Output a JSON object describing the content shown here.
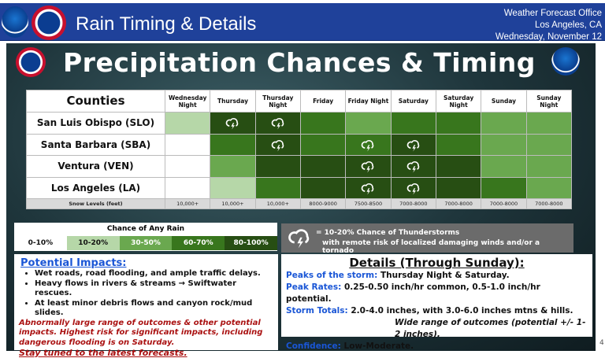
{
  "header": {
    "title": "Rain Timing & Details",
    "office": "Weather Forecast Office",
    "location": "Los Angeles, CA",
    "date": "Wednesday, November 12",
    "noaa_logo": "NOAA",
    "nws_logo": "NATIONAL WEATHER SERVICE"
  },
  "panel_title": "Precipitation Chances & Timing",
  "colors": {
    "1": "#ffffff",
    "2": "#b6d7a8",
    "3": "#6aa84f",
    "4": "#38761d",
    "5": "#274e13"
  },
  "table": {
    "counties_header": "Counties",
    "periods": [
      "Wednesday Night",
      "Thursday",
      "Thursday Night",
      "Friday",
      "Friday Night",
      "Saturday",
      "Saturday Night",
      "Sunday",
      "Sunday Night"
    ],
    "rows": [
      {
        "county": "San Luis Obispo (SLO)",
        "levels": [
          2,
          5,
          5,
          4,
          3,
          4,
          4,
          3,
          3
        ],
        "storms": [
          0,
          1,
          1,
          0,
          0,
          0,
          0,
          0,
          0
        ]
      },
      {
        "county": "Santa Barbara (SBA)",
        "levels": [
          1,
          4,
          5,
          4,
          4,
          5,
          4,
          3,
          3
        ],
        "storms": [
          0,
          0,
          1,
          0,
          1,
          1,
          0,
          0,
          0
        ]
      },
      {
        "county": "Ventura (VEN)",
        "levels": [
          1,
          3,
          5,
          5,
          5,
          5,
          5,
          3,
          3
        ],
        "storms": [
          0,
          0,
          0,
          0,
          1,
          1,
          0,
          0,
          0
        ]
      },
      {
        "county": "Los Angeles (LA)",
        "levels": [
          1,
          2,
          4,
          5,
          5,
          5,
          5,
          4,
          3
        ],
        "storms": [
          0,
          0,
          0,
          0,
          1,
          1,
          0,
          0,
          0
        ]
      }
    ],
    "snow_label": "Snow Levels (feet)",
    "snow_levels": [
      "10,000+",
      "10,000+",
      "10,000+",
      "8000-9000",
      "7500-8500",
      "7000-8000",
      "7000-8000",
      "7000-8000",
      "7000-8000"
    ]
  },
  "legend": {
    "title": "Chance of Any Rain",
    "items": [
      "0-10%",
      "10-20%",
      "30-50%",
      "60-70%",
      "80-100%"
    ]
  },
  "thunder_legend": {
    "icon": "thunderstorm-icon",
    "line1": "= 10-20% Chance of Thunderstorms",
    "line2": "with remote risk of localized damaging winds and/or a tornado"
  },
  "impacts": {
    "title": "Potential Impacts:",
    "bullets": [
      "Wet roads, road flooding, and ample traffic delays.",
      "Heavy flows in rivers & streams → Swiftwater rescues.",
      "At least minor debris flows and canyon rock/mud slides."
    ],
    "warning": "Abnormally large range of outcomes & other potential impacts. Highest risk for significant impacts, including dangerous flooding is on Saturday.",
    "stay": "Stay tuned to the latest forecasts."
  },
  "details": {
    "title": "Details (Through Sunday):",
    "items": [
      {
        "k": "Peaks of the storm:",
        "v": " Thursday Night & Saturday."
      },
      {
        "k": "Peak Rates:",
        "v": " 0.25-0.50 inch/hr common, 0.5-1.0 inch/hr potential."
      },
      {
        "k": "Storm Totals:",
        "v": " 2.0-4.0 inches, with 3.0-6.0 inches mtns & hills."
      }
    ],
    "range": "Wide range of outcomes (potential +/- 1-2 inches).",
    "confidence_k": "Confidence:",
    "confidence_v": " Low-Moderate."
  },
  "page_number": "4"
}
